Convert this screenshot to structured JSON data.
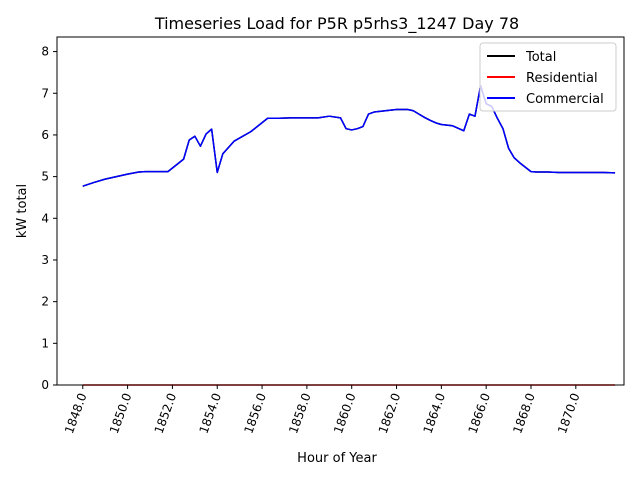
{
  "chart_data": {
    "type": "line",
    "title": "Timeseries Load for P5R p5rhs3_1247  Day 78",
    "xlabel": "Hour of Year",
    "ylabel": "kW total",
    "xlim": [
      1846.85,
      1872.15
    ],
    "ylim": [
      0,
      8.35
    ],
    "xticks": [
      1848,
      1850,
      1852,
      1854,
      1856,
      1858,
      1860,
      1862,
      1864,
      1866,
      1868,
      1870
    ],
    "xtick_labels": [
      "1848.0",
      "1850.0",
      "1852.0",
      "1854.0",
      "1856.0",
      "1858.0",
      "1860.0",
      "1862.0",
      "1864.0",
      "1866.0",
      "1868.0",
      "1870.0"
    ],
    "yticks": [
      0,
      1,
      2,
      3,
      4,
      5,
      6,
      7,
      8
    ],
    "ytick_labels": [
      "0",
      "1",
      "2",
      "3",
      "4",
      "5",
      "6",
      "7",
      "8"
    ],
    "legend_position": "top-right",
    "series": [
      {
        "name": "Total",
        "color": "#000000",
        "x": [
          1848.0,
          1848.5,
          1849.0,
          1849.5,
          1850.0,
          1850.5,
          1850.8,
          1851.2,
          1851.8,
          1852.5,
          1852.75,
          1853.0,
          1853.25,
          1853.5,
          1853.75,
          1854.0,
          1854.25,
          1854.75,
          1855.5,
          1856.25,
          1856.75,
          1857.25,
          1857.75,
          1858.25,
          1858.5,
          1859.0,
          1859.5,
          1859.75,
          1860.0,
          1860.25,
          1860.5,
          1860.75,
          1861.0,
          1861.5,
          1862.0,
          1862.5,
          1862.75,
          1863.0,
          1863.25,
          1863.5,
          1863.75,
          1864.0,
          1864.5,
          1865.0,
          1865.25,
          1865.5,
          1865.75,
          1866.0,
          1866.25,
          1866.5,
          1866.75,
          1867.0,
          1867.25,
          1867.5,
          1868.0,
          1868.25,
          1868.75,
          1869.25,
          1869.75,
          1870.25,
          1870.75,
          1871.25,
          1871.75
        ],
        "y": [
          4.77,
          4.86,
          4.94,
          5.0,
          5.06,
          5.11,
          5.12,
          5.12,
          5.12,
          5.42,
          5.88,
          5.97,
          5.73,
          6.02,
          6.14,
          5.1,
          5.55,
          5.85,
          6.08,
          6.4,
          6.4,
          6.41,
          6.41,
          6.41,
          6.41,
          6.45,
          6.41,
          6.15,
          6.12,
          6.15,
          6.2,
          6.5,
          6.55,
          6.58,
          6.61,
          6.61,
          6.58,
          6.5,
          6.42,
          6.35,
          6.29,
          6.25,
          6.22,
          6.1,
          6.5,
          6.45,
          7.18,
          6.75,
          6.68,
          6.4,
          6.15,
          5.68,
          5.45,
          5.33,
          5.12,
          5.11,
          5.11,
          5.1,
          5.1,
          5.1,
          5.1,
          5.1,
          5.09
        ]
      },
      {
        "name": "Residential",
        "color": "#ff0000",
        "x": [
          1848.0,
          1871.75
        ],
        "y": [
          0,
          0
        ]
      },
      {
        "name": "Commercial",
        "color": "#0000ff",
        "x": [
          1848.0,
          1848.5,
          1849.0,
          1849.5,
          1850.0,
          1850.5,
          1850.8,
          1851.2,
          1851.8,
          1852.5,
          1852.75,
          1853.0,
          1853.25,
          1853.5,
          1853.75,
          1854.0,
          1854.25,
          1854.75,
          1855.5,
          1856.25,
          1856.75,
          1857.25,
          1857.75,
          1858.25,
          1858.5,
          1859.0,
          1859.5,
          1859.75,
          1860.0,
          1860.25,
          1860.5,
          1860.75,
          1861.0,
          1861.5,
          1862.0,
          1862.5,
          1862.75,
          1863.0,
          1863.25,
          1863.5,
          1863.75,
          1864.0,
          1864.5,
          1865.0,
          1865.25,
          1865.5,
          1865.75,
          1866.0,
          1866.25,
          1866.5,
          1866.75,
          1867.0,
          1867.25,
          1867.5,
          1868.0,
          1868.25,
          1868.75,
          1869.25,
          1869.75,
          1870.25,
          1870.75,
          1871.25,
          1871.75
        ],
        "y": [
          4.77,
          4.86,
          4.94,
          5.0,
          5.06,
          5.11,
          5.12,
          5.12,
          5.12,
          5.42,
          5.88,
          5.97,
          5.73,
          6.02,
          6.14,
          5.1,
          5.55,
          5.85,
          6.08,
          6.4,
          6.4,
          6.41,
          6.41,
          6.41,
          6.41,
          6.45,
          6.41,
          6.15,
          6.12,
          6.15,
          6.2,
          6.5,
          6.55,
          6.58,
          6.61,
          6.61,
          6.58,
          6.5,
          6.42,
          6.35,
          6.29,
          6.25,
          6.22,
          6.1,
          6.5,
          6.45,
          7.18,
          6.75,
          6.68,
          6.4,
          6.15,
          5.68,
          5.45,
          5.33,
          5.12,
          5.11,
          5.11,
          5.1,
          5.1,
          5.1,
          5.1,
          5.1,
          5.09
        ]
      }
    ]
  }
}
